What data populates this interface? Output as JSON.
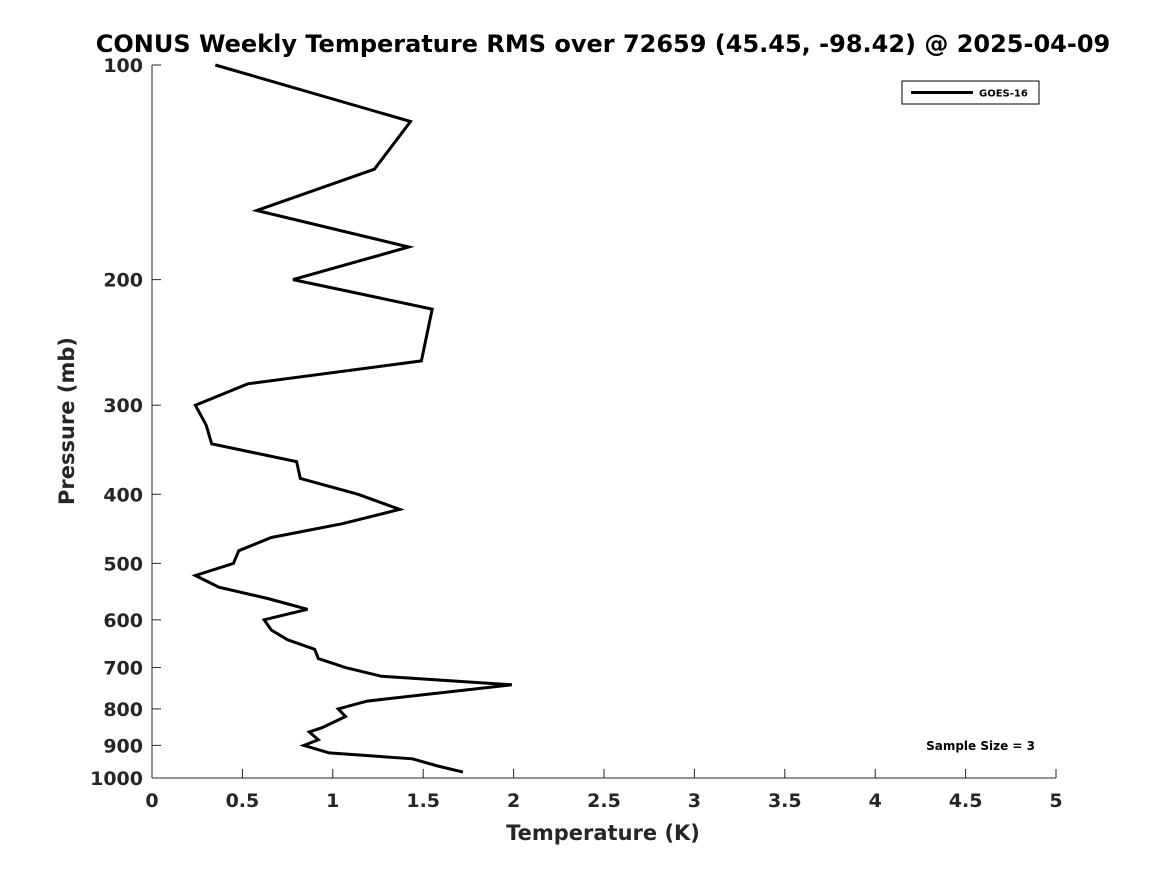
{
  "chart_data": {
    "type": "line",
    "title": "CONUS Weekly Temperature RMS over 72659 (45.45, -98.42) @ 2025-04-09",
    "xlabel": "Temperature (K)",
    "ylabel": "Pressure (mb)",
    "xlim": [
      0,
      5
    ],
    "ylim": [
      100,
      1000
    ],
    "yscale": "log",
    "yreversed": true,
    "grid": false,
    "xticks": [
      0,
      0.5,
      1,
      1.5,
      2,
      2.5,
      3,
      3.5,
      4,
      4.5,
      5
    ],
    "xtick_labels": [
      "0",
      "0.5",
      "1",
      "1.5",
      "2",
      "2.5",
      "3",
      "3.5",
      "4",
      "4.5",
      "5"
    ],
    "yticks": [
      100,
      200,
      300,
      400,
      500,
      600,
      700,
      800,
      900,
      1000
    ],
    "ytick_labels": [
      "100",
      "200",
      "300",
      "400",
      "500",
      "600",
      "700",
      "800",
      "900",
      "1000"
    ],
    "legend": {
      "position": "top-right",
      "entries": [
        "GOES-16"
      ]
    },
    "annotation": "Sample Size = 3",
    "series": [
      {
        "name": "GOES-16",
        "color": "#000000",
        "x": [
          0.35,
          1.43,
          1.23,
          0.58,
          1.42,
          0.78,
          1.55,
          1.49,
          0.53,
          0.24,
          0.3,
          0.33,
          0.8,
          0.82,
          1.14,
          1.37,
          1.05,
          0.66,
          0.48,
          0.45,
          0.24,
          0.37,
          0.64,
          0.86,
          0.62,
          0.66,
          0.75,
          0.9,
          0.92,
          1.07,
          1.27,
          1.99,
          1.19,
          1.03,
          1.07,
          0.94,
          0.87,
          0.92,
          0.84,
          0.98,
          1.44,
          1.58,
          1.72
        ],
        "p": [
          100,
          120,
          140,
          160,
          180,
          200,
          220,
          260,
          280,
          300,
          320,
          340,
          360,
          380,
          400,
          420,
          440,
          460,
          480,
          500,
          520,
          540,
          560,
          580,
          600,
          620,
          640,
          660,
          680,
          700,
          720,
          740,
          780,
          800,
          820,
          850,
          862,
          884,
          900,
          922,
          940,
          962,
          981
        ]
      }
    ]
  }
}
